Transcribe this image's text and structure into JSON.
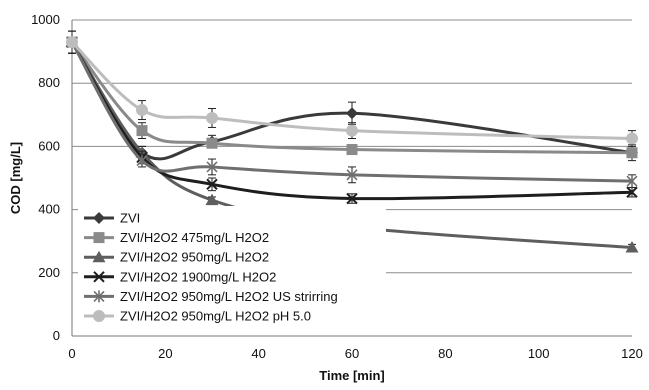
{
  "chart_data": {
    "type": "line",
    "title": "",
    "xlabel": "Time [min]",
    "ylabel": "COD [mg/L]",
    "xlim": [
      0,
      120
    ],
    "ylim": [
      0,
      1000
    ],
    "x_ticks": [
      0,
      20,
      40,
      60,
      80,
      100,
      120
    ],
    "y_ticks": [
      0,
      200,
      400,
      600,
      800,
      1000
    ],
    "grid": "horizontal",
    "legend_position": "bottom-left",
    "x": [
      0,
      15,
      30,
      60,
      120
    ],
    "series": [
      {
        "name": "ZVI",
        "color": "#3a3a3a",
        "marker": "diamond",
        "values": [
          930,
          580,
          615,
          705,
          580
        ],
        "errors": [
          35,
          20,
          20,
          35,
          25
        ]
      },
      {
        "name": "ZVI/H2O2 475mg/L H2O2",
        "color": "#8a8a8a",
        "marker": "square",
        "values": [
          930,
          650,
          610,
          590,
          580
        ],
        "errors": [
          35,
          25,
          15,
          15,
          15
        ]
      },
      {
        "name": "ZVI/H2O2 950mg/L H2O2",
        "color": "#5e5e5e",
        "marker": "triangle",
        "values": [
          930,
          580,
          430,
          345,
          280
        ],
        "errors": [
          35,
          20,
          10,
          15,
          10
        ]
      },
      {
        "name": "ZVI/H2O2 1900mg/L H2O2",
        "color": "#1e1e1e",
        "marker": "x",
        "values": [
          930,
          565,
          480,
          435,
          455
        ],
        "errors": [
          35,
          20,
          20,
          15,
          15
        ]
      },
      {
        "name": "ZVI/H2O2 950mg/L H2O2 US strirring",
        "color": "#6f6f6f",
        "marker": "star",
        "values": [
          930,
          555,
          535,
          510,
          490
        ],
        "errors": [
          35,
          20,
          25,
          25,
          20
        ]
      },
      {
        "name": "ZVI/H2O2 950mg/L H2O2 pH 5.0",
        "color": "#bdbdbd",
        "marker": "circle",
        "values": [
          930,
          715,
          690,
          650,
          625
        ],
        "errors": [
          35,
          30,
          30,
          25,
          25
        ]
      }
    ]
  }
}
